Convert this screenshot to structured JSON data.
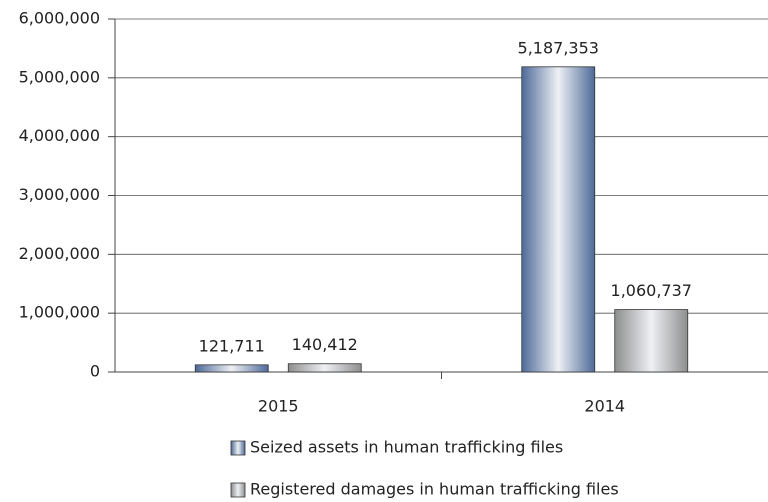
{
  "chart_data": {
    "type": "bar",
    "categories": [
      "2015",
      "2014"
    ],
    "series": [
      {
        "name": "Seized assets in human trafficking files",
        "color": "#4e6a99",
        "values": [
          121711,
          5187353
        ],
        "value_labels": [
          "121,711",
          "5,187,353"
        ]
      },
      {
        "name": "Registered damages in human trafficking files",
        "color": "#8e8e8e",
        "values": [
          140412,
          1060737
        ],
        "value_labels": [
          "140,412",
          "1,060,737"
        ]
      }
    ],
    "ylim": [
      0,
      6000000
    ],
    "yticks": [
      0,
      {
        "value": 1000000,
        "label": "1,000,000"
      },
      {
        "value": 2000000,
        "label": "2,000,000"
      },
      {
        "value": 3000000,
        "label": "3,000,000"
      },
      {
        "value": 4000000,
        "label": "4,000,000"
      },
      {
        "value": 5000000,
        "label": "5,000,000"
      },
      {
        "value": 6000000,
        "label": "6,000,000"
      }
    ],
    "grid": true,
    "legend": "bottom"
  }
}
